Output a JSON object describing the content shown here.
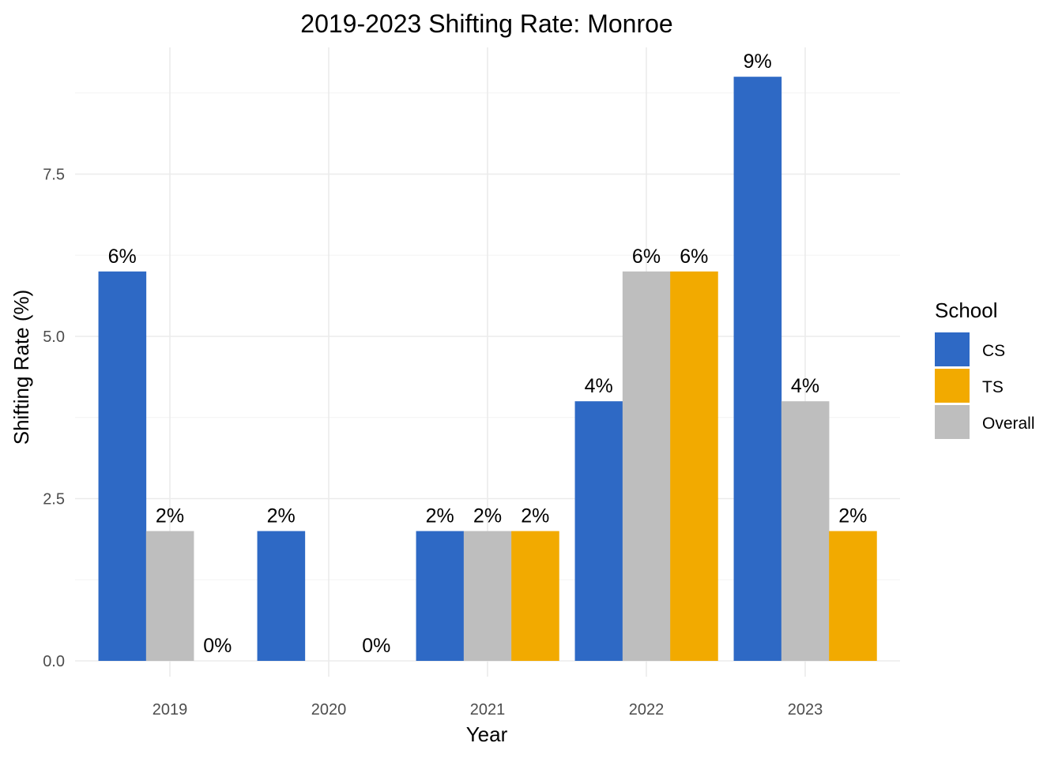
{
  "chart_data": {
    "type": "bar",
    "title": "2019-2023 Shifting Rate: Monroe",
    "xlabel": "Year",
    "ylabel": "Shifting Rate (%)",
    "categories": [
      "2019",
      "2020",
      "2021",
      "2022",
      "2023"
    ],
    "ylim": [
      0,
      9.5
    ],
    "yticks": [
      {
        "value": 0,
        "label": "0.0"
      },
      {
        "value": 2.5,
        "label": "2.5"
      },
      {
        "value": 5,
        "label": "5.0"
      },
      {
        "value": 7.5,
        "label": "7.5"
      }
    ],
    "grid": true,
    "legend": {
      "title": "School",
      "position": "right"
    },
    "series": [
      {
        "name": "CS",
        "color": "#2E69C5",
        "values": [
          6,
          2,
          2,
          4,
          9
        ],
        "labels": [
          "6%",
          "2%",
          "2%",
          "4%",
          "9%"
        ]
      },
      {
        "name": "Overall",
        "color": "#BEBEBE",
        "values": [
          2,
          0,
          2,
          6,
          4
        ],
        "labels": [
          "2%",
          "",
          "2%",
          "6%",
          "4%"
        ]
      },
      {
        "name": "TS",
        "color": "#F2AA00",
        "values": [
          0,
          0,
          2,
          6,
          2
        ],
        "labels": [
          "0%",
          "0%",
          "2%",
          "6%",
          "2%"
        ]
      }
    ],
    "legend_order": [
      "CS",
      "TS",
      "Overall"
    ]
  }
}
